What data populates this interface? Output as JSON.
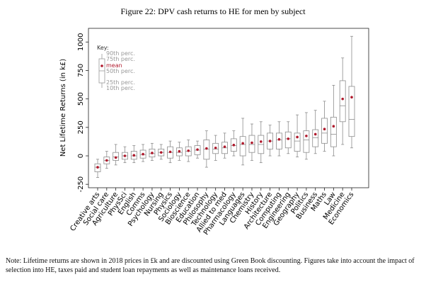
{
  "chart_data": {
    "type": "box",
    "title": "Figure 22: DPV cash returns to HE for men by subject",
    "y_label": "Net Lifetime Returns (in k£)",
    "categories": [
      "Creative arts",
      "Social care",
      "Agriculture",
      "PhysSci",
      "English",
      "Comms",
      "Psychology",
      "Nursing",
      "Physics",
      "Sociology",
      "Bioscience",
      "Education",
      "Philosophy",
      "Technology",
      "Allied to med",
      "Pharmacology",
      "Languages",
      "Chemistry",
      "History",
      "Architecture",
      "Computing",
      "Engineering",
      "Geography",
      "Politics",
      "Business",
      "Maths",
      "Law",
      "Medicine",
      "Economics"
    ],
    "p10": [
      -190,
      -110,
      -80,
      -60,
      -60,
      -50,
      -40,
      -30,
      -60,
      -40,
      -50,
      -20,
      -100,
      -40,
      -20,
      0,
      -80,
      -40,
      -60,
      0,
      0,
      20,
      -10,
      -30,
      20,
      40,
      0,
      100,
      70
    ],
    "p25": [
      -140,
      -70,
      -40,
      -30,
      -30,
      -20,
      -10,
      0,
      -20,
      0,
      0,
      10,
      -30,
      20,
      20,
      40,
      0,
      30,
      20,
      60,
      60,
      70,
      40,
      30,
      80,
      110,
      80,
      300,
      170
    ],
    "p50": [
      -100,
      -40,
      -10,
      0,
      0,
      10,
      20,
      30,
      30,
      30,
      40,
      50,
      60,
      60,
      70,
      90,
      100,
      100,
      100,
      130,
      140,
      150,
      130,
      140,
      160,
      200,
      190,
      440,
      320
    ],
    "p75": [
      -70,
      -10,
      30,
      30,
      40,
      50,
      60,
      60,
      80,
      70,
      80,
      90,
      140,
      110,
      120,
      150,
      170,
      180,
      180,
      200,
      200,
      210,
      200,
      220,
      230,
      330,
      340,
      660,
      610
    ],
    "p90": [
      -30,
      40,
      100,
      80,
      90,
      100,
      110,
      100,
      130,
      120,
      140,
      130,
      220,
      180,
      200,
      220,
      330,
      280,
      300,
      270,
      300,
      300,
      360,
      380,
      400,
      480,
      620,
      860,
      1050
    ],
    "mean": [
      -100,
      -40,
      -15,
      0,
      5,
      15,
      25,
      30,
      35,
      40,
      45,
      55,
      65,
      70,
      80,
      95,
      110,
      115,
      125,
      130,
      145,
      150,
      165,
      175,
      190,
      235,
      260,
      500,
      515
    ],
    "box_color": "#8c8c8c",
    "mean_color": "#b0192c",
    "ylim": [
      -280,
      1120
    ],
    "yticks": [
      -250,
      0,
      250,
      500,
      750,
      1000
    ],
    "key": {
      "title": "Key:",
      "p90": "90th perc.",
      "p75": "75th perc.",
      "mean": "mean",
      "p50": "50th perc.",
      "p25": "25th perc.",
      "p10": "10th perc."
    }
  },
  "note": "Note: Lifetime returns are shown in 2018 prices in £k and are discounted using Green Book discounting. Figures take into account the impact of selection into HE, taxes paid and student loan repayments as well as maintenance loans received."
}
